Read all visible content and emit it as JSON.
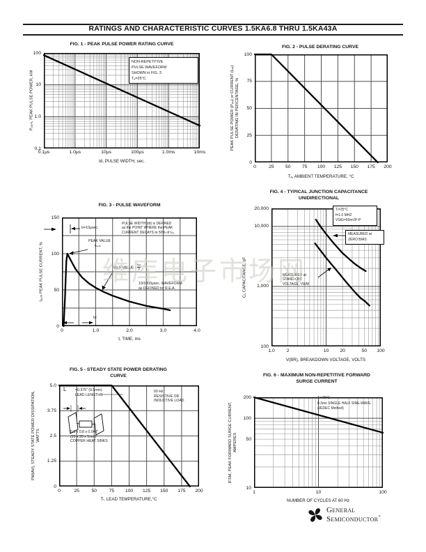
{
  "page": {
    "title": "RATINGS AND CHARACTERISTIC CURVES 1.5KA6.8 THRU 1.5KA43A",
    "watermark": "维库电子市场网"
  },
  "logo": {
    "line1": "General",
    "line2": "Semiconductor",
    "registered": "®"
  },
  "chart_data": [
    {
      "id": "fig1",
      "type": "line",
      "title_lines": [
        "FIG. 1 - PEAK PULSE POWER RATING CURVE"
      ],
      "xlabel": "td, PULSE WIDTH, sec.",
      "ylabel_lines": [
        "Pₚₚₘ, PEAK PULSE POWER, kW"
      ],
      "x": {
        "scale": "log",
        "min": 1e-07,
        "max": 0.01,
        "ticks": [
          [
            1e-07,
            "0.1μs"
          ],
          [
            1e-06,
            "1.0μs"
          ],
          [
            1e-05,
            "10μs"
          ],
          [
            0.0001,
            "100μs"
          ],
          [
            0.001,
            "1.0ms"
          ],
          [
            0.01,
            "10ms"
          ]
        ]
      },
      "y": {
        "scale": "log",
        "min": 0.1,
        "max": 100,
        "ticks": [
          [
            100,
            "100"
          ],
          [
            10,
            "10"
          ],
          [
            1,
            "1.0"
          ],
          [
            0.1,
            "0.1"
          ]
        ]
      },
      "series": [
        {
          "name": "peak pulse power vs pulse width",
          "points": [
            [
              1e-07,
              85
            ],
            [
              0.01,
              0.52
            ]
          ]
        }
      ],
      "annotations": {
        "note": [
          "NON-REPETITIVE",
          "PULSE WAVEFORM",
          "SHOWN in FIG. 3",
          "Tₐ=25°C"
        ]
      }
    },
    {
      "id": "fig2",
      "type": "line",
      "title_lines": [
        "FIG. 2 - PULSE DERATING CURVE"
      ],
      "xlabel": "Tₐ, AMBIENT TEMPERATURE, °C",
      "ylabel_lines": [
        "PEAK PULSE POWER (Pₚₚ) or CURRENT (Iₚₚ)",
        "DERATING IN PERCENTAGE, %"
      ],
      "x": {
        "scale": "linear",
        "min": 0,
        "max": 200,
        "step": 25,
        "ticks": [
          [
            0,
            "0"
          ],
          [
            25,
            "25"
          ],
          [
            50,
            "50"
          ],
          [
            75,
            "75"
          ],
          [
            100,
            "100"
          ],
          [
            125,
            "125"
          ],
          [
            150,
            "150"
          ],
          [
            175,
            "175"
          ],
          [
            200,
            "200"
          ]
        ]
      },
      "y": {
        "scale": "linear",
        "min": 0,
        "max": 100,
        "step": 25,
        "ticks": [
          [
            0,
            "0"
          ],
          [
            25,
            "25"
          ],
          [
            50,
            "50"
          ],
          [
            75,
            "75"
          ],
          [
            100,
            "100"
          ]
        ]
      },
      "series": [
        {
          "name": "pulse derating",
          "points": [
            [
              0,
              100
            ],
            [
              25,
              100
            ],
            [
              185,
              0
            ]
          ]
        }
      ],
      "annotations": {}
    },
    {
      "id": "fig3",
      "type": "line",
      "title_lines": [
        "FIG. 3 - PULSE WAVEFORM"
      ],
      "xlabel": "t, TIME, ms",
      "ylabel_lines": [
        "Iₚₚₘ PEAK PULSE CURRENT, %"
      ],
      "x": {
        "scale": "linear",
        "min": 0,
        "max": 4,
        "step": 0.5,
        "ticks": [
          [
            0,
            "0"
          ],
          [
            1,
            "1.0"
          ],
          [
            2,
            "2.0"
          ],
          [
            3,
            "3.0"
          ],
          [
            4,
            "4.0"
          ]
        ]
      },
      "y": {
        "scale": "linear",
        "min": 0,
        "max": 150,
        "step": 25,
        "ticks": [
          [
            0,
            "0"
          ],
          [
            50,
            "50"
          ],
          [
            100,
            "100"
          ],
          [
            150,
            "150"
          ]
        ]
      },
      "series": [
        {
          "name": "10/1000 usec pulse waveform",
          "points": [
            [
              0.05,
              0
            ],
            [
              0.09,
              40
            ],
            [
              0.13,
              90
            ],
            [
              0.16,
              100
            ],
            [
              0.25,
              92
            ],
            [
              0.4,
              79
            ],
            [
              0.6,
              67
            ],
            [
              0.8,
              59
            ],
            [
              1.0,
              53
            ],
            [
              1.25,
              47
            ],
            [
              1.5,
              42
            ],
            [
              1.75,
              38
            ],
            [
              2.0,
              34
            ],
            [
              2.25,
              31
            ],
            [
              2.5,
              28
            ],
            [
              2.75,
              26
            ],
            [
              3.0,
              24
            ],
            [
              3.2,
              22
            ]
          ]
        }
      ],
      "annotations": {
        "tr": "tr=10μsec.",
        "peak": [
          "PEAK VALUE",
          "Iₚₚₘ"
        ],
        "pulse_width": [
          "PULSE WIDTH (td) is DEFINED",
          "as the POINT WHERE the PEAK",
          "CURRENT DECAYS to 50% of Iₚₚ"
        ],
        "half_label": "HALF VALUE - ",
        "half_num": "Iₚₚ",
        "half_den": "2",
        "wave": [
          "10/1000μsec. WAVEFORM",
          "as DEFINED by R.E.A."
        ],
        "td": "td"
      }
    },
    {
      "id": "fig4",
      "type": "line",
      "title_lines": [
        "FIG. 4 - TYPICAL JUNCTION CAPACITANCE",
        "UNIDIRECTIONAL"
      ],
      "xlabel": "V(BR), BREAKDOWN VOLTAGE, VOLTS",
      "ylabel_lines": [
        "Cⱼ, CAPACITANCE, pF"
      ],
      "x": {
        "scale": "log",
        "min": 1,
        "max": 100,
        "ticks": [
          [
            1,
            "1.0"
          ],
          [
            2,
            "2"
          ],
          [
            10,
            "10"
          ],
          [
            20,
            "20"
          ],
          [
            50,
            "50"
          ],
          [
            100,
            "100"
          ]
        ]
      },
      "y": {
        "scale": "log",
        "min": 100,
        "max": 20000,
        "ticks": [
          [
            100,
            "100"
          ],
          [
            1000,
            "1,000"
          ],
          [
            10000,
            "10,000"
          ],
          [
            20000,
            "20,000"
          ]
        ]
      },
      "series": [
        {
          "name": "measured at zero bias",
          "points": [
            [
              6.5,
              13000
            ],
            [
              8,
              9800
            ],
            [
              10,
              7500
            ],
            [
              13,
              5600
            ],
            [
              16,
              4500
            ],
            [
              20,
              3600
            ],
            [
              26,
              2900
            ],
            [
              33,
              2400
            ],
            [
              42,
              2050
            ],
            [
              53,
              1800
            ]
          ]
        },
        {
          "name": "measured at stand-off voltage",
          "points": [
            [
              6.3,
              5200
            ],
            [
              8,
              3900
            ],
            [
              10,
              3000
            ],
            [
              13,
              2250
            ],
            [
              16,
              1800
            ],
            [
              20,
              1400
            ],
            [
              26,
              1050
            ],
            [
              33,
              820
            ],
            [
              42,
              650
            ],
            [
              52,
              560
            ],
            [
              62,
              480
            ]
          ]
        }
      ],
      "annotations": {
        "note": [
          "Tⱼ=25°C",
          "f=1.0 MHZ",
          "VSIG=50mVP-P"
        ],
        "zero_bias": [
          "MEASURED at",
          "ZERO BIAS"
        ],
        "stand_off": [
          "MEASURED at",
          "STAND-OFF",
          "VOLTAGE, VWM"
        ]
      }
    },
    {
      "id": "fig5",
      "type": "line",
      "title_lines": [
        "FIG. 5 - STEADY STATE POWER DERATING",
        "CURVE"
      ],
      "xlabel": "Tₗ, LEAD TEMPERATURE,°C",
      "ylabel_lines": [
        "PM(AV), STEADY STATE POWER DISSIPATION,",
        "WATTS"
      ],
      "x": {
        "scale": "linear",
        "min": 0,
        "max": 200,
        "step": 25,
        "ticks": [
          [
            0,
            "0"
          ],
          [
            25,
            "25"
          ],
          [
            50,
            "50"
          ],
          [
            75,
            "75"
          ],
          [
            100,
            "100"
          ],
          [
            125,
            "125"
          ],
          [
            150,
            "150"
          ],
          [
            175,
            "175"
          ],
          [
            200,
            "200"
          ]
        ]
      },
      "y": {
        "scale": "linear",
        "min": 0,
        "max": 5,
        "step": 1.25,
        "ticks": [
          [
            0,
            "0"
          ],
          [
            1.25,
            "1.25"
          ],
          [
            2.5,
            "2.5"
          ],
          [
            3.75,
            "3.75"
          ],
          [
            5,
            "5.0"
          ]
        ]
      },
      "series": [
        {
          "name": "steady state power derating",
          "points": [
            [
              0,
              5
            ],
            [
              75,
              5
            ],
            [
              187,
              0
            ]
          ]
        }
      ],
      "annotations": {
        "L": "L",
        "lead": [
          "=0.375\" (9.5mm)",
          "LEAD LENGTHS"
        ],
        "load": [
          "60 Hz",
          "RESISTIVE OR",
          "INDUCTIVE LOAD"
        ],
        "heatsink": [
          "0.8 x 0.8 x 0.040\"",
          "(20 x 20 x 1mm)",
          "COPPER HEAT SINKS"
        ]
      }
    },
    {
      "id": "fig6",
      "type": "line",
      "title_lines": [
        "FIG. 6 - MAXIMUM NON-REPETITIVE FORWARD",
        "SURGE CURRENT"
      ],
      "xlabel": "NUMBER OF CYCLES AT 60 Hz",
      "ylabel_lines": [
        "IFSM, PEAK FORWARD SURGE CURRENT,",
        "AMPERES"
      ],
      "x": {
        "scale": "log",
        "min": 1,
        "max": 100,
        "ticks": [
          [
            1,
            "1"
          ],
          [
            10,
            "10"
          ],
          [
            100,
            "100"
          ]
        ]
      },
      "y": {
        "scale": "log",
        "min": 10,
        "max": 200,
        "ticks": [
          [
            10,
            "10"
          ],
          [
            50,
            "50"
          ],
          [
            100,
            "100"
          ],
          [
            200,
            "200"
          ]
        ]
      },
      "series": [
        {
          "name": "max non-repetitive forward surge current",
          "points": [
            [
              1,
              200
            ],
            [
              100,
              62
            ]
          ]
        }
      ],
      "annotations": {
        "note": [
          "Tₗ=75°C",
          "8.3ms SINGLE HALF SINE-WAVE",
          "(JEDEC Method)"
        ]
      }
    }
  ]
}
